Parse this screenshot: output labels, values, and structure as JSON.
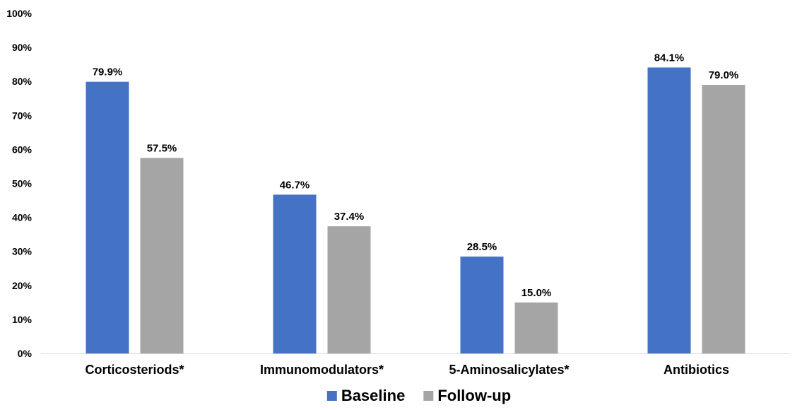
{
  "chart_data": {
    "type": "bar",
    "title": "",
    "xlabel": "",
    "ylabel": "",
    "ylim": [
      0,
      100
    ],
    "y_ticks": [
      "0%",
      "10%",
      "20%",
      "30%",
      "40%",
      "50%",
      "60%",
      "70%",
      "80%",
      "90%",
      "100%"
    ],
    "y_tick_values": [
      0,
      10,
      20,
      30,
      40,
      50,
      60,
      70,
      80,
      90,
      100
    ],
    "categories": [
      "Corticosteriods*",
      "Immunomodulators*",
      "5-Aminosalicylates*",
      "Antibiotics"
    ],
    "series": [
      {
        "name": "Baseline",
        "color": "#4472C4",
        "values": [
          79.9,
          46.7,
          28.5,
          84.1
        ],
        "labels": [
          "79.9%",
          "46.7%",
          "28.5%",
          "84.1%"
        ]
      },
      {
        "name": "Follow-up",
        "color": "#A5A5A5",
        "values": [
          57.5,
          37.4,
          15.0,
          79.0
        ],
        "labels": [
          "57.5%",
          "37.4%",
          "15.0%",
          "79.0%"
        ]
      }
    ],
    "grid": false,
    "legend_position": "bottom"
  }
}
